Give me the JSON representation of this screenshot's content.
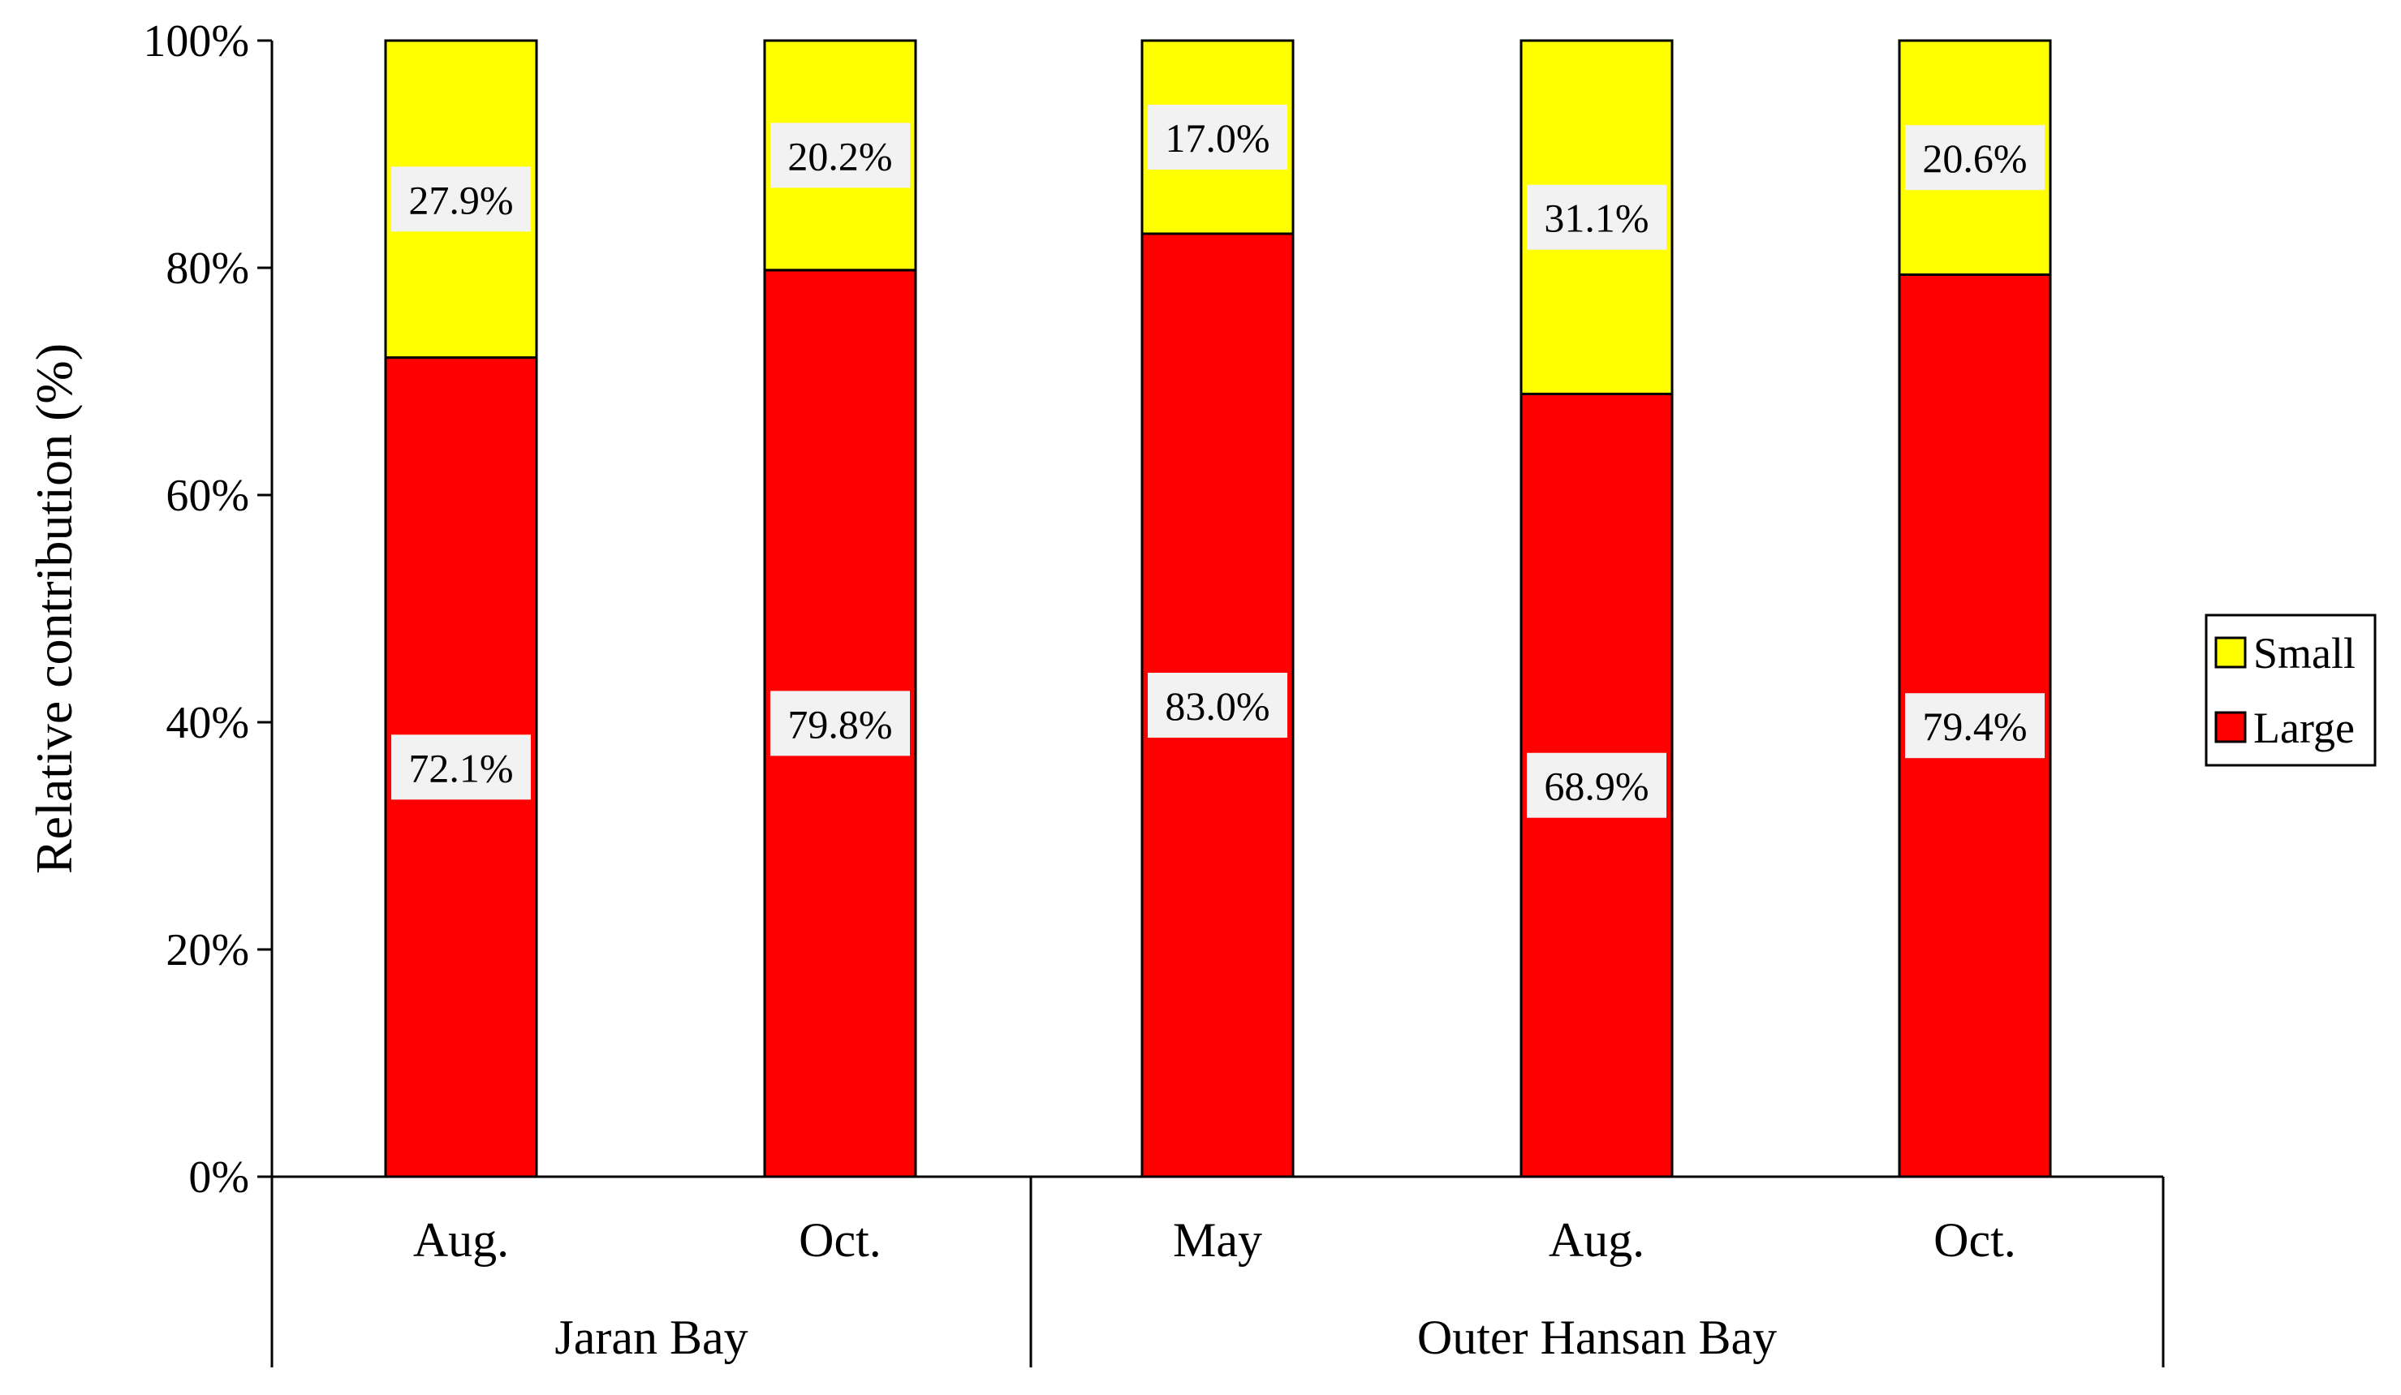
{
  "chart_data": {
    "type": "bar",
    "stacked": true,
    "ylabel": "Relative contribution (%)",
    "ylim": [
      0,
      100
    ],
    "y_ticks": [
      "0%",
      "20%",
      "40%",
      "60%",
      "80%",
      "100%"
    ],
    "groups": [
      {
        "label": "Jaran Bay",
        "categories": [
          "Aug.",
          "Oct."
        ]
      },
      {
        "label": "Outer Hansan Bay",
        "categories": [
          "May",
          "Aug.",
          "Oct."
        ]
      }
    ],
    "categories": [
      "Aug.",
      "Oct.",
      "May",
      "Aug.",
      "Oct."
    ],
    "series": [
      {
        "name": "Large",
        "color": "#ff0000",
        "values": [
          72.1,
          79.8,
          83.0,
          68.9,
          79.4
        ],
        "labels": [
          "72.1%",
          "79.8%",
          "83.0%",
          "68.9%",
          "79.4%"
        ]
      },
      {
        "name": "Small",
        "color": "#ffff00",
        "values": [
          27.9,
          20.2,
          17.0,
          31.1,
          20.6
        ],
        "labels": [
          "27.9%",
          "20.2%",
          "17.0%",
          "31.1%",
          "20.6%"
        ]
      }
    ],
    "legend": {
      "position": "right",
      "entries": [
        {
          "name": "Small",
          "color": "#ffff00"
        },
        {
          "name": "Large",
          "color": "#ff0000"
        }
      ]
    },
    "grid": false
  }
}
